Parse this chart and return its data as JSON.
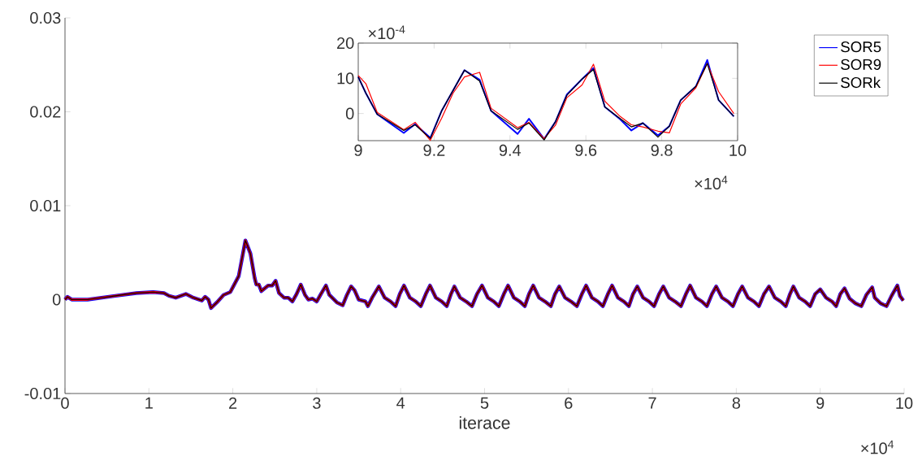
{
  "chart_data": [
    {
      "type": "line",
      "xlabel": "iterace",
      "xlim": [
        0,
        10
      ],
      "ylim": [
        -0.01,
        0.03
      ],
      "xticks": [
        0,
        1,
        2,
        3,
        4,
        5,
        6,
        7,
        8,
        9,
        10
      ],
      "yticks": [
        -0.01,
        0,
        0.01,
        0.02,
        0.03
      ],
      "legend": "top right",
      "annotations": [
        "×10$^{4}$"
      ],
      "x": [
        0,
        0.03,
        0.08,
        0.27,
        0.6,
        0.85,
        1.05,
        1.18,
        1.24,
        1.32,
        1.44,
        1.53,
        1.63,
        1.67,
        1.71,
        1.74,
        1.81,
        1.89,
        1.97,
        2.07,
        2.15,
        2.21,
        2.26,
        2.28,
        2.31,
        2.34,
        2.42,
        2.47,
        2.51,
        2.55,
        2.61,
        2.66,
        2.71,
        2.76,
        2.81,
        2.86,
        2.9,
        2.95,
        3.0,
        3.05,
        3.11,
        3.15,
        3.24,
        3.31,
        3.36,
        3.41,
        3.45,
        3.5,
        3.58,
        3.61,
        3.66,
        3.74,
        3.81,
        3.88,
        3.94,
        3.99,
        4.04,
        4.11,
        4.18,
        4.24,
        4.3,
        4.35,
        4.42,
        4.49,
        4.55,
        4.6,
        4.64,
        4.71,
        4.78,
        4.85,
        4.91,
        4.97,
        5.04,
        5.11,
        5.17,
        5.23,
        5.28,
        5.35,
        5.42,
        5.48,
        5.53,
        5.58,
        5.65,
        5.72,
        5.79,
        5.84,
        5.89,
        5.96,
        6.03,
        6.1,
        6.16,
        6.21,
        6.28,
        6.35,
        6.41,
        6.47,
        6.52,
        6.59,
        6.66,
        6.72,
        6.77,
        6.82,
        6.89,
        6.96,
        7.02,
        7.08,
        7.13,
        7.2,
        7.27,
        7.34,
        7.4,
        7.45,
        7.52,
        7.59,
        7.65,
        7.71,
        7.76,
        7.83,
        7.9,
        7.96,
        8.02,
        8.07,
        8.14,
        8.21,
        8.27,
        8.33,
        8.39,
        8.46,
        8.53,
        8.59,
        8.64,
        8.68,
        8.75,
        8.82,
        8.88,
        8.94,
        9.0,
        9.07,
        9.14,
        9.19,
        9.24,
        9.29,
        9.35,
        9.42,
        9.49,
        9.55,
        9.62,
        9.65,
        9.72,
        9.79,
        9.85,
        9.92,
        9.95,
        9.99
      ],
      "series": [
        {
          "name": "SOR5",
          "color": "#0000ff",
          "values": [
            0,
            0.0003,
            0,
            0,
            0.0004,
            0.0007,
            0.0008,
            0.0007,
            0.0004,
            0.0002,
            0.0006,
            0.0002,
            -0.0001,
            0.0003,
            0,
            -0.0009,
            -0.0003,
            0.0005,
            0.0008,
            0.0025,
            0.0063,
            0.0049,
            0.0023,
            0.0016,
            0.0016,
            0.0009,
            0.0015,
            0.0015,
            0.002,
            0.0007,
            0.0002,
            0.0002,
            -0.0002,
            0.0006,
            0.0016,
            0.0005,
            0,
            0.0001,
            -0.0002,
            0.0006,
            0.0015,
            0.0005,
            -0.0003,
            -0.0006,
            0.0005,
            0.0014,
            0.001,
            0,
            -0.0002,
            -0.0007,
            0.0002,
            0.0014,
            0.0002,
            -0.0002,
            -0.0007,
            0.0006,
            0.0015,
            0.0002,
            -0.0002,
            -0.0007,
            0.0006,
            0.0015,
            0.0002,
            -0.0002,
            -0.0007,
            0.0006,
            0.0014,
            0.0002,
            -0.0002,
            -0.0007,
            0.0006,
            0.0015,
            0.0002,
            -0.0002,
            -0.0007,
            0.0006,
            0.0015,
            0.0002,
            -0.0002,
            -0.0007,
            0.0006,
            0.0015,
            0.0002,
            -0.0002,
            -0.0007,
            0.0006,
            0.0014,
            0.0002,
            -0.0002,
            -0.0007,
            0.0006,
            0.0015,
            0.0002,
            -0.0002,
            -0.0007,
            0.0006,
            0.0015,
            0.0002,
            -0.0002,
            -0.0007,
            0.0006,
            0.0014,
            0.0002,
            -0.0002,
            -0.0007,
            0.0006,
            0.0014,
            0.0002,
            -0.0002,
            -0.0007,
            0.0006,
            0.0015,
            0.0002,
            -0.0002,
            -0.0007,
            0.0006,
            0.0014,
            0.0002,
            -0.0002,
            -0.0007,
            0.0006,
            0.0014,
            0.0002,
            -0.0002,
            -0.0007,
            0.0006,
            0.0014,
            0.0002,
            -0.0002,
            -0.0007,
            0.0006,
            0.0014,
            0.0002,
            -0.0002,
            -0.0007,
            0.0006,
            0.0011,
            0.0002,
            -0.0002,
            -0.0007,
            0.0006,
            0.0012,
            0.0001,
            -0.0004,
            -0.0007,
            0.0005,
            0.0013,
            0.0002,
            -0.0004,
            -0.0007,
            0.0004,
            0.0015,
            0.0004,
            -0.0001
          ]
        },
        {
          "name": "SOR9",
          "color": "#ff0000",
          "values": [
            0,
            0.0003,
            0,
            0,
            0.0004,
            0.0007,
            0.0008,
            0.0007,
            0.0004,
            0.0002,
            0.0006,
            0.0002,
            -0.0001,
            0.0003,
            0,
            -0.0009,
            -0.0003,
            0.0005,
            0.0008,
            0.0025,
            0.0063,
            0.0049,
            0.0023,
            0.0016,
            0.0016,
            0.0009,
            0.0015,
            0.0015,
            0.002,
            0.0007,
            0.0002,
            0.0002,
            -0.0002,
            0.0006,
            0.0016,
            0.0005,
            0,
            0.0001,
            -0.0002,
            0.0006,
            0.0015,
            0.0005,
            -0.0003,
            -0.0006,
            0.0005,
            0.0014,
            0.001,
            0,
            -0.0002,
            -0.0007,
            0.0002,
            0.0014,
            0.0002,
            -0.0002,
            -0.0007,
            0.0006,
            0.0015,
            0.0002,
            -0.0002,
            -0.0007,
            0.0006,
            0.0015,
            0.0002,
            -0.0002,
            -0.0007,
            0.0006,
            0.0014,
            0.0002,
            -0.0002,
            -0.0007,
            0.0006,
            0.0015,
            0.0002,
            -0.0002,
            -0.0007,
            0.0006,
            0.0015,
            0.0002,
            -0.0002,
            -0.0007,
            0.0006,
            0.0015,
            0.0002,
            -0.0002,
            -0.0007,
            0.0006,
            0.0014,
            0.0002,
            -0.0002,
            -0.0007,
            0.0006,
            0.0015,
            0.0002,
            -0.0002,
            -0.0007,
            0.0006,
            0.0015,
            0.0002,
            -0.0002,
            -0.0007,
            0.0006,
            0.0014,
            0.0002,
            -0.0002,
            -0.0007,
            0.0006,
            0.0014,
            0.0002,
            -0.0002,
            -0.0007,
            0.0006,
            0.0015,
            0.0002,
            -0.0002,
            -0.0007,
            0.0006,
            0.0014,
            0.0002,
            -0.0002,
            -0.0007,
            0.0006,
            0.0014,
            0.0002,
            -0.0002,
            -0.0007,
            0.0006,
            0.0014,
            0.0002,
            -0.0002,
            -0.0007,
            0.0006,
            0.0014,
            0.0002,
            -0.0002,
            -0.0007,
            0.0006,
            0.0011,
            0.0002,
            -0.0002,
            -0.0007,
            0.0006,
            0.0012,
            0.0001,
            -0.0004,
            -0.0007,
            0.0005,
            0.0013,
            0.0002,
            -0.0004,
            -0.0007,
            0.0004,
            0.0015,
            0.0004,
            -0.0001
          ]
        },
        {
          "name": "SORk",
          "color": "#000000",
          "values": [
            0,
            0.0003,
            0,
            0,
            0.0004,
            0.0007,
            0.0008,
            0.0007,
            0.0004,
            0.0002,
            0.0006,
            0.0002,
            -0.0001,
            0.0003,
            0,
            -0.0009,
            -0.0003,
            0.0005,
            0.0008,
            0.0025,
            0.0063,
            0.0049,
            0.0023,
            0.0016,
            0.0016,
            0.0009,
            0.0015,
            0.0015,
            0.002,
            0.0007,
            0.0002,
            0.0002,
            -0.0002,
            0.0006,
            0.0016,
            0.0005,
            0,
            0.0001,
            -0.0002,
            0.0006,
            0.0015,
            0.0005,
            -0.0003,
            -0.0006,
            0.0005,
            0.0014,
            0.001,
            0,
            -0.0002,
            -0.0007,
            0.0002,
            0.0014,
            0.0002,
            -0.0002,
            -0.0007,
            0.0006,
            0.0015,
            0.0002,
            -0.0002,
            -0.0007,
            0.0006,
            0.0015,
            0.0002,
            -0.0002,
            -0.0007,
            0.0006,
            0.0014,
            0.0002,
            -0.0002,
            -0.0007,
            0.0006,
            0.0015,
            0.0002,
            -0.0002,
            -0.0007,
            0.0006,
            0.0015,
            0.0002,
            -0.0002,
            -0.0007,
            0.0006,
            0.0015,
            0.0002,
            -0.0002,
            -0.0007,
            0.0006,
            0.0014,
            0.0002,
            -0.0002,
            -0.0007,
            0.0006,
            0.0015,
            0.0002,
            -0.0002,
            -0.0007,
            0.0006,
            0.0015,
            0.0002,
            -0.0002,
            -0.0007,
            0.0006,
            0.0014,
            0.0002,
            -0.0002,
            -0.0007,
            0.0006,
            0.0014,
            0.0002,
            -0.0002,
            -0.0007,
            0.0006,
            0.0015,
            0.0002,
            -0.0002,
            -0.0007,
            0.0006,
            0.0014,
            0.0002,
            -0.0002,
            -0.0007,
            0.0006,
            0.0014,
            0.0002,
            -0.0002,
            -0.0007,
            0.0006,
            0.0014,
            0.0002,
            -0.0002,
            -0.0007,
            0.0006,
            0.0014,
            0.0002,
            -0.0002,
            -0.0007,
            0.0006,
            0.0011,
            0.0002,
            -0.0002,
            -0.0007,
            0.0006,
            0.0012,
            0.0001,
            -0.0004,
            -0.0007,
            0.0005,
            0.0013,
            0.0002,
            -0.0004,
            -0.0007,
            0.0004,
            0.0015,
            0.0004,
            -0.0001
          ]
        }
      ]
    },
    {
      "type": "line",
      "xlim": [
        9,
        10
      ],
      "ylim": [
        -7.7,
        20
      ],
      "xticks": [
        9,
        9.2,
        9.4,
        9.6,
        9.8,
        10
      ],
      "yticks": [
        0,
        10,
        20
      ],
      "annotations": [
        "×10$^{-4}$",
        "×10$^{4}$"
      ],
      "series": [
        {
          "color": "#0000ff",
          "x": [
            9.0,
            9.02,
            9.05,
            9.12,
            9.15,
            9.19,
            9.22,
            9.28,
            9.32,
            9.35,
            9.42,
            9.45,
            9.49,
            9.52,
            9.55,
            9.59,
            9.62,
            9.65,
            9.69,
            9.72,
            9.75,
            9.79,
            9.82,
            9.85,
            9.89,
            9.92,
            9.95,
            9.99
          ],
          "values": [
            10.4,
            5.8,
            -0.2,
            -5.5,
            -3.0,
            -6.9,
            0.8,
            12.3,
            9.6,
            0.8,
            -5.8,
            -1.5,
            -7.2,
            -2.3,
            5.4,
            9.8,
            12.9,
            1.9,
            -1.6,
            -4.8,
            -2.7,
            -6.2,
            -3.6,
            3.8,
            7.7,
            15.2,
            3.8,
            -0.8
          ]
        },
        {
          "color": "#ff0000",
          "x": [
            9.0,
            9.02,
            9.05,
            9.12,
            9.15,
            9.19,
            9.22,
            9.25,
            9.28,
            9.32,
            9.35,
            9.42,
            9.45,
            9.49,
            9.52,
            9.55,
            9.59,
            9.62,
            9.65,
            9.69,
            9.72,
            9.75,
            9.79,
            9.82,
            9.85,
            9.89,
            9.92,
            9.95,
            9.99
          ],
          "values": [
            10.8,
            8.5,
            0.3,
            -4.6,
            -2.5,
            -7.6,
            -1.3,
            5.8,
            10.4,
            11.7,
            1.5,
            -4.0,
            -2.5,
            -7.1,
            -3.3,
            4.5,
            8.1,
            14.0,
            3.5,
            -0.8,
            -3.2,
            -3.8,
            -5.0,
            -5.5,
            2.7,
            7.3,
            14.2,
            6.2,
            0
          ]
        },
        {
          "color": "#000000",
          "x": [
            9.0,
            9.02,
            9.05,
            9.12,
            9.15,
            9.19,
            9.22,
            9.28,
            9.32,
            9.35,
            9.42,
            9.45,
            9.49,
            9.52,
            9.55,
            9.59,
            9.62,
            9.65,
            9.69,
            9.72,
            9.75,
            9.79,
            9.82,
            9.85,
            9.89,
            9.92,
            9.95,
            9.99
          ],
          "values": [
            10.4,
            5.8,
            -0.2,
            -4.8,
            -3.2,
            -7.1,
            0.8,
            12.3,
            9.2,
            0.8,
            -4.5,
            -2.7,
            -7.5,
            -2.3,
            5.2,
            9.8,
            12.5,
            1.9,
            -1.4,
            -3.8,
            -2.7,
            -6.7,
            -3.6,
            3.8,
            7.7,
            14.2,
            3.8,
            -0.8
          ]
        }
      ]
    }
  ]
}
